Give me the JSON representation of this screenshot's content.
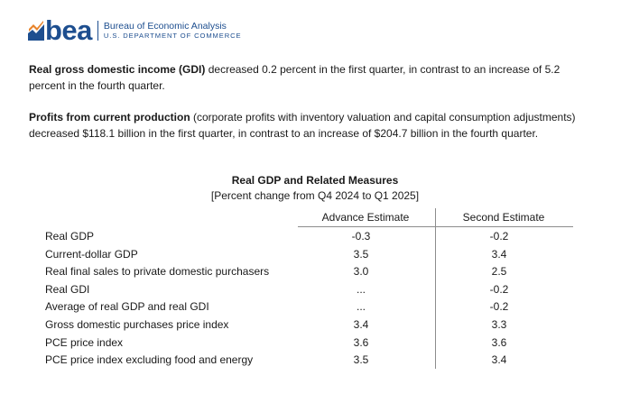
{
  "logo": {
    "word": "bea",
    "line1": "Bureau of Economic Analysis",
    "line2": "U.S. DEPARTMENT OF COMMERCE"
  },
  "paragraph1": {
    "bold": "Real gross domestic income (GDI)",
    "text": " decreased 0.2 percent in the first quarter, in contrast to an increase of 5.2 percent in the fourth quarter."
  },
  "paragraph2": {
    "bold": "Profits from current production",
    "text": " (corporate profits with inventory valuation and capital consumption adjustments) decreased $118.1 billion in the first quarter, in contrast to an increase of $204.7 billion in the fourth quarter."
  },
  "table": {
    "title": "Real GDP and Related Measures",
    "subtitle": "[Percent change from Q4 2024 to Q1 2025]",
    "columns": [
      "Advance Estimate",
      "Second Estimate"
    ],
    "rows": [
      {
        "label": "Real GDP",
        "advance": "-0.3",
        "second": "-0.2"
      },
      {
        "label": "Current-dollar GDP",
        "advance": "3.5",
        "second": "3.4"
      },
      {
        "label": "Real final sales to private domestic purchasers",
        "advance": "3.0",
        "second": "2.5"
      },
      {
        "label": "Real GDI",
        "advance": "...",
        "second": "-0.2"
      },
      {
        "label": "Average of real GDP and real GDI",
        "advance": "...",
        "second": "-0.2"
      },
      {
        "label": "Gross domestic purchases price index",
        "advance": "3.4",
        "second": "3.3"
      },
      {
        "label": "PCE price index",
        "advance": "3.6",
        "second": "3.6"
      },
      {
        "label": "PCE price index excluding food and energy",
        "advance": "3.5",
        "second": "3.4"
      }
    ]
  },
  "colors": {
    "brand_blue": "#1d4e8f",
    "brand_orange": "#e8832a",
    "rule_gray": "#8c8c8c"
  }
}
